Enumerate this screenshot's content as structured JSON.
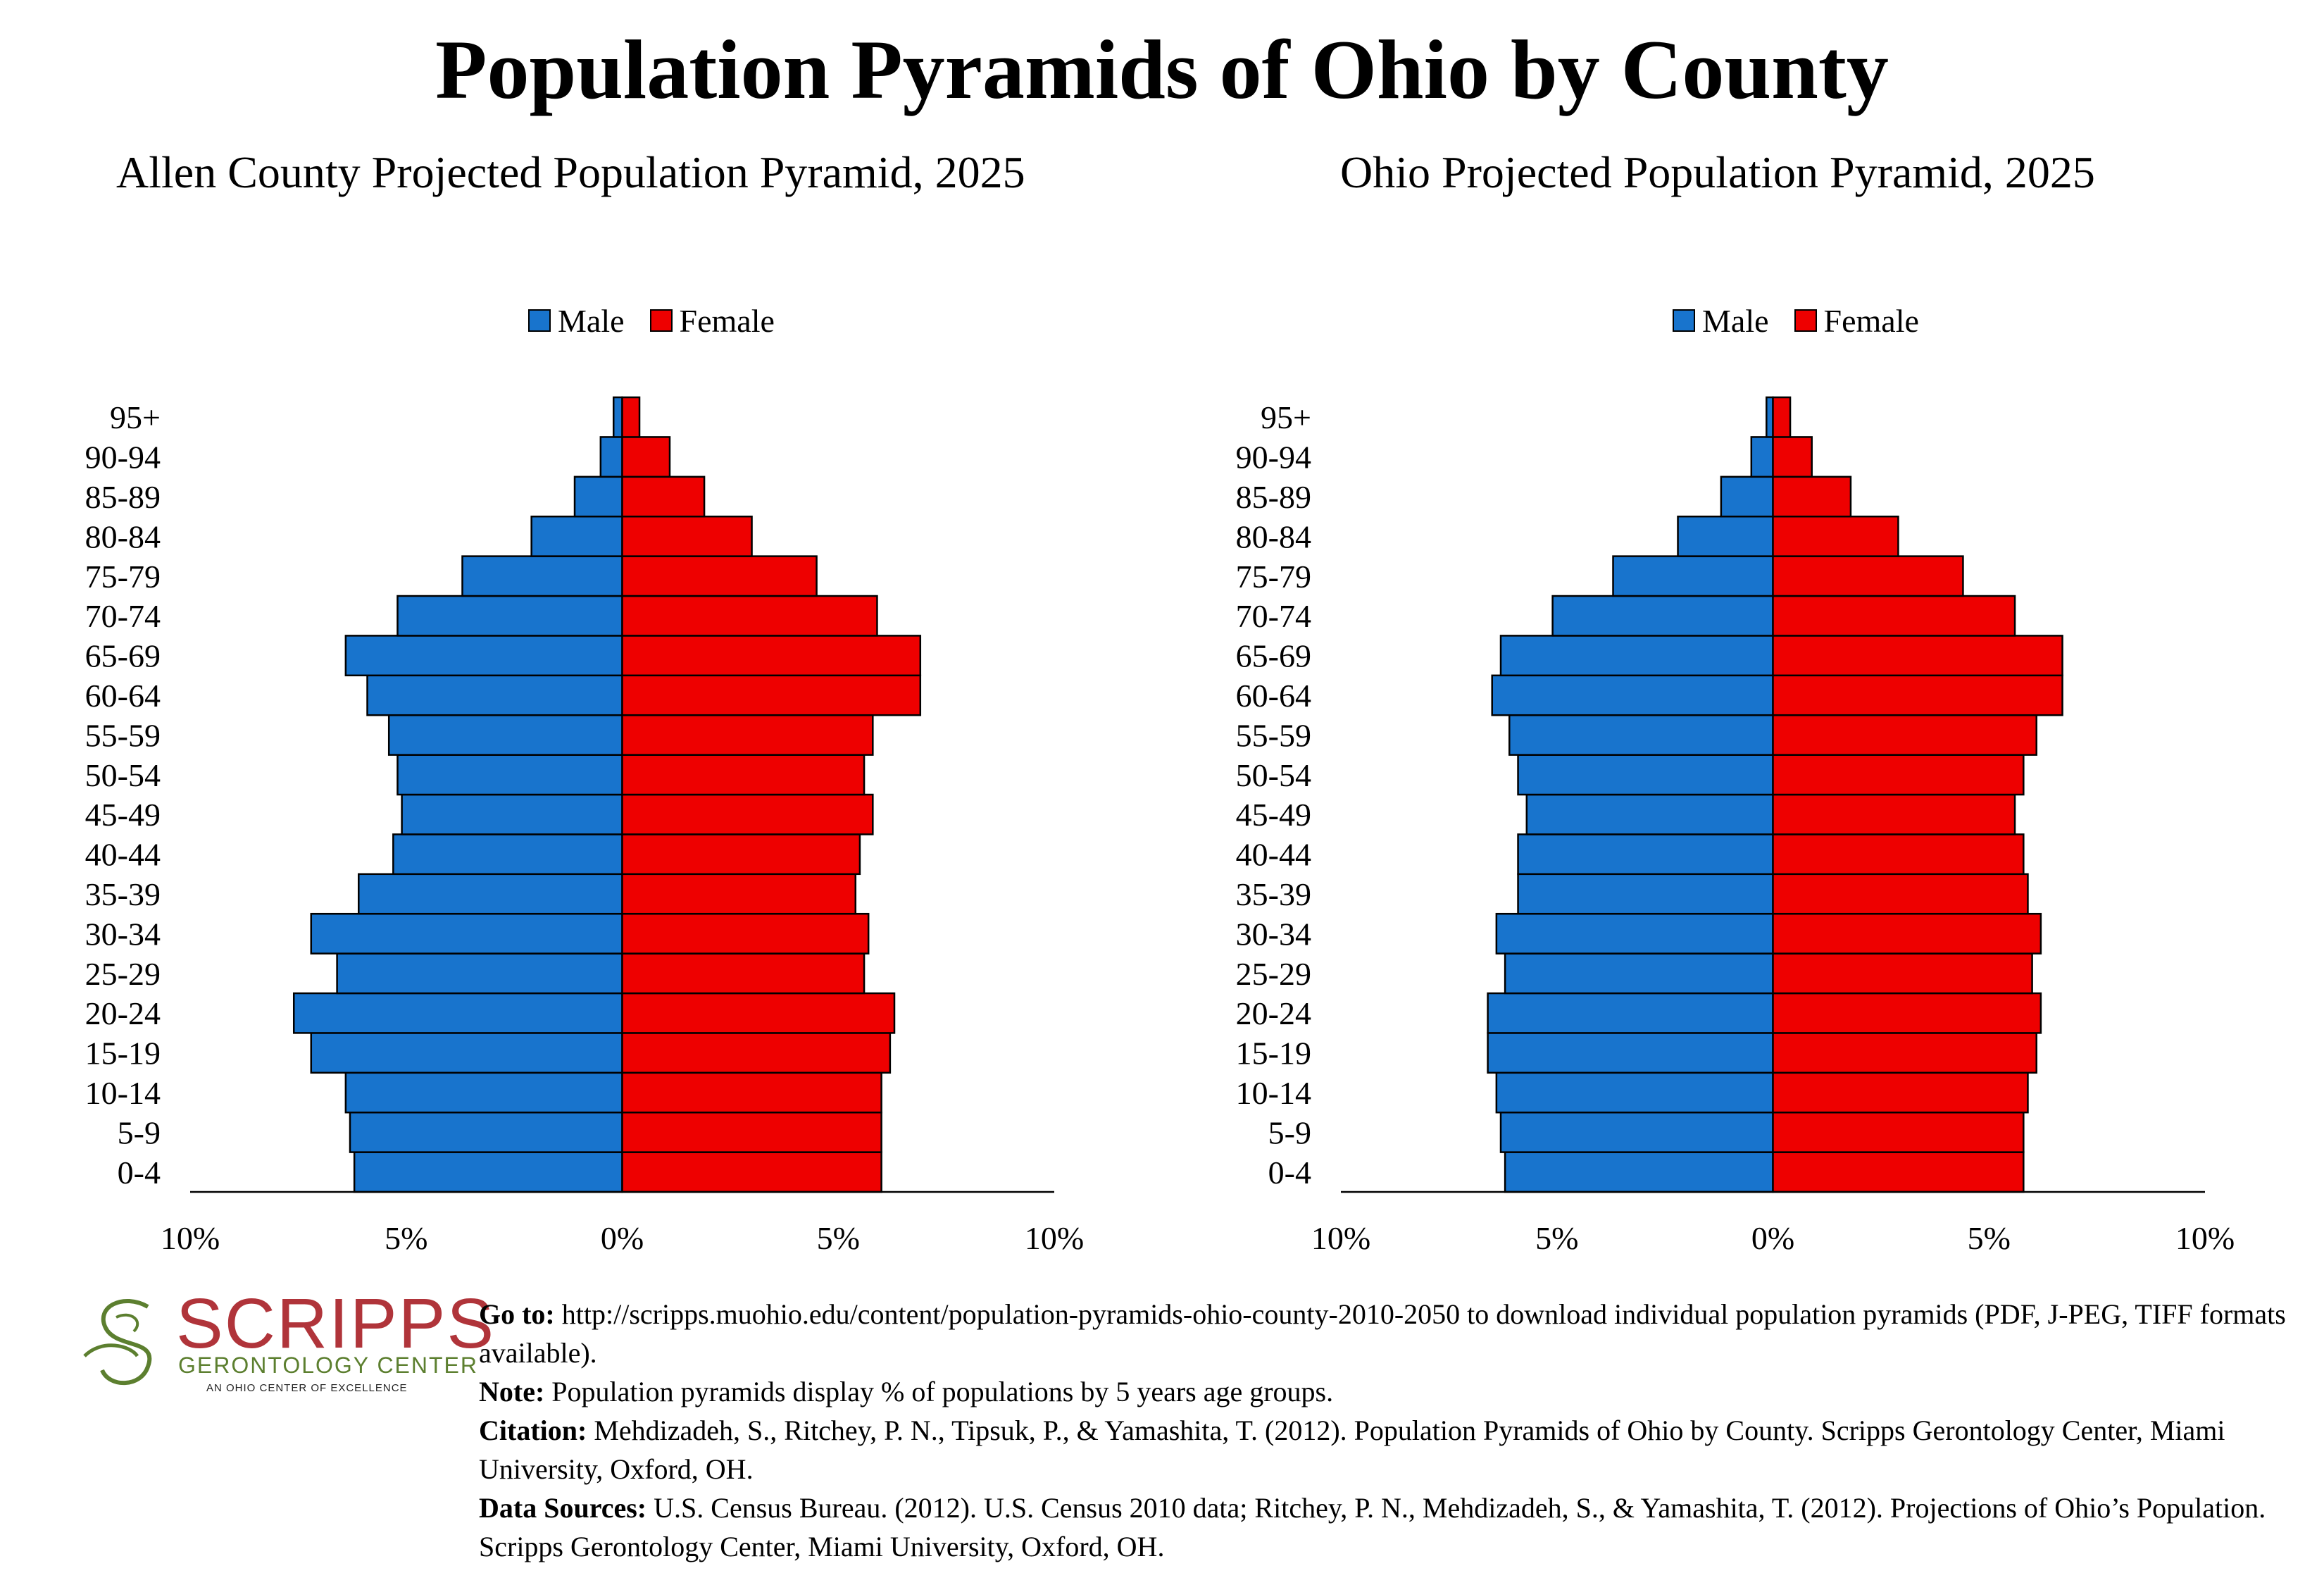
{
  "main_title": "Population Pyramids of Ohio by County",
  "chart_data": [
    {
      "type": "bar",
      "orientation": "horizontal-pyramid",
      "title": "Allen County Projected Population Pyramid, 2025",
      "categories": [
        "0-4",
        "5-9",
        "10-14",
        "15-19",
        "20-24",
        "25-29",
        "30-34",
        "35-39",
        "40-44",
        "45-49",
        "50-54",
        "55-59",
        "60-64",
        "65-69",
        "70-74",
        "75-79",
        "80-84",
        "85-89",
        "90-94",
        "95+"
      ],
      "series": [
        {
          "name": "Male",
          "color": "#1874CD",
          "values": [
            6.2,
            6.3,
            6.4,
            7.2,
            7.6,
            6.6,
            7.2,
            6.1,
            5.3,
            5.1,
            5.2,
            5.4,
            5.9,
            6.4,
            5.2,
            3.7,
            2.1,
            1.1,
            0.5,
            0.2
          ]
        },
        {
          "name": "Female",
          "color": "#EE0000",
          "values": [
            6.0,
            6.0,
            6.0,
            6.2,
            6.3,
            5.6,
            5.7,
            5.4,
            5.5,
            5.8,
            5.6,
            5.8,
            6.9,
            6.9,
            5.9,
            4.5,
            3.0,
            1.9,
            1.1,
            0.4
          ]
        }
      ],
      "xlim": [
        -10,
        10
      ],
      "xticks": [
        "10%",
        "5%",
        "0%",
        "5%",
        "10%"
      ],
      "legend": "top-center"
    },
    {
      "type": "bar",
      "orientation": "horizontal-pyramid",
      "title": "Ohio Projected Population Pyramid, 2025",
      "categories": [
        "0-4",
        "5-9",
        "10-14",
        "15-19",
        "20-24",
        "25-29",
        "30-34",
        "35-39",
        "40-44",
        "45-49",
        "50-54",
        "55-59",
        "60-64",
        "65-69",
        "70-74",
        "75-79",
        "80-84",
        "85-89",
        "90-94",
        "95+"
      ],
      "series": [
        {
          "name": "Male",
          "color": "#1874CD",
          "values": [
            6.2,
            6.3,
            6.4,
            6.6,
            6.6,
            6.2,
            6.4,
            5.9,
            5.9,
            5.7,
            5.9,
            6.1,
            6.5,
            6.3,
            5.1,
            3.7,
            2.2,
            1.2,
            0.5,
            0.15
          ]
        },
        {
          "name": "Female",
          "color": "#EE0000",
          "values": [
            5.8,
            5.8,
            5.9,
            6.1,
            6.2,
            6.0,
            6.2,
            5.9,
            5.8,
            5.6,
            5.8,
            6.1,
            6.7,
            6.7,
            5.6,
            4.4,
            2.9,
            1.8,
            0.9,
            0.4
          ]
        }
      ],
      "xlim": [
        -10,
        10
      ],
      "xticks": [
        "10%",
        "5%",
        "0%",
        "5%",
        "10%"
      ],
      "legend": "top-center"
    }
  ],
  "logo": {
    "word": "SCRIPPS",
    "subtitle": "GERONTOLOGY CENTER",
    "tagline": "AN OHIO CENTER OF EXCELLENCE",
    "word_color": "#B0343A",
    "accent_color": "#5C7F2F"
  },
  "notes": {
    "goto_label": "Go to:",
    "goto_text": " http://scripps.muohio.edu/content/population-pyramids-ohio-county-2010-2050 to download individual population pyramids (PDF, J-PEG, TIFF formats available).",
    "note_label": "Note:",
    "note_text": " Population pyramids display % of populations by 5 years age groups.",
    "citation_label": "Citation:",
    "citation_text": " Mehdizadeh, S., Ritchey, P. N., Tipsuk, P., & Yamashita, T. (2012). Population Pyramids of Ohio by County. Scripps Gerontology Center, Miami University, Oxford, OH.",
    "sources_label": "Data Sources:",
    "sources_text": " U.S. Census Bureau. (2012). U.S. Census 2010 data; Ritchey, P. N., Mehdizadeh, S., & Yamashita, T. (2012). Projections of Ohio’s Population. Scripps Gerontology Center, Miami University, Oxford, OH."
  }
}
